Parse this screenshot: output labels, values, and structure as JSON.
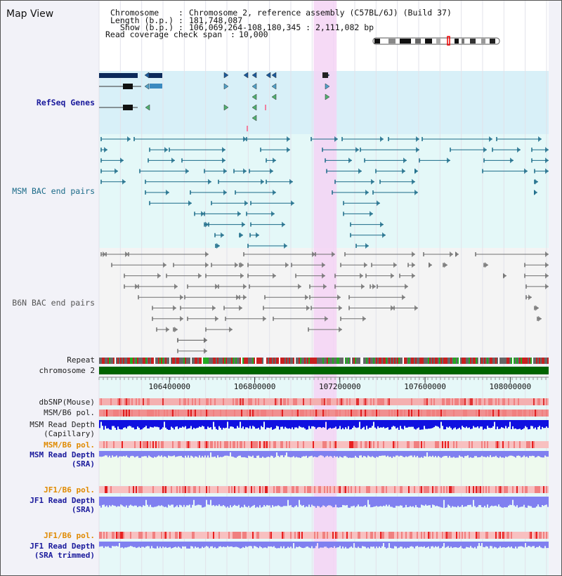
{
  "panel_title": "Map View",
  "info": {
    "chromosome_key": "Chromosome",
    "chromosome_value": "Chromosome 2, reference assembly (C57BL/6J) (Build 37)",
    "length_key": "Length (b.p.)",
    "length_value": "181,748,087",
    "show_key": "Show (b.p.)",
    "show_value": "106,069,264-108,180,345 : 2,111,082 bp",
    "span_key": "Read coverage check span",
    "span_value": "10,000"
  },
  "tracks": {
    "refseq": "RefSeq Genes",
    "msm_bac": "MSM BAC end pairs",
    "b6n_bac": "B6N BAC end pairs",
    "repeat": "Repeat",
    "chromosome": "chromosome 2",
    "dbsnp": "dbSNP(Mouse)",
    "msm_b6_pol": "MSM/B6 pol.",
    "msm_depth_cap_1": "MSM Read Depth",
    "msm_depth_cap_2": "(Capillary)",
    "msm_b6_pol_sra": "MSM/B6 pol.",
    "msm_depth_sra_1": "MSM Read Depth",
    "msm_depth_sra_2": "(SRA)",
    "jf1_b6_pol": "JF1/B6 pol.",
    "jf1_depth_1": "JF1 Read Depth",
    "jf1_depth_2": "(SRA)",
    "jf1_b6_pol_trim": "JF1/B6 pol.",
    "jf1_depth_trim_1": "JF1 Read Depth",
    "jf1_depth_trim_2": "(SRA trimmed)"
  },
  "axis": {
    "start_bp": 106069264,
    "end_bp": 108180345,
    "ticks": [
      {
        "bp": 106400000,
        "label": "106400000"
      },
      {
        "bp": 106800000,
        "label": "106800000"
      },
      {
        "bp": 107200000,
        "label": "107200000"
      },
      {
        "bp": 107600000,
        "label": "107600000"
      },
      {
        "bp": 108000000,
        "label": "108000000"
      }
    ],
    "highlight_bp": [
      107077000,
      107185000
    ]
  },
  "colors": {
    "refseq_bg": "#d8f0f8",
    "msm_bg": "#e4f8f8",
    "b6n_bg": "#f4f4f4",
    "highlight": "#f5d4f5",
    "gene": "#0c2a5a",
    "msm_pair": "#1a6a88",
    "b6n_pair": "#707070",
    "chromosome_bar": "#006400",
    "label_blue": "#1a1a9c",
    "label_orange": "#e08a00",
    "label_dark": "#222222",
    "depth_capillary": "#1010e0",
    "depth_sra": "#8080f0"
  }
}
